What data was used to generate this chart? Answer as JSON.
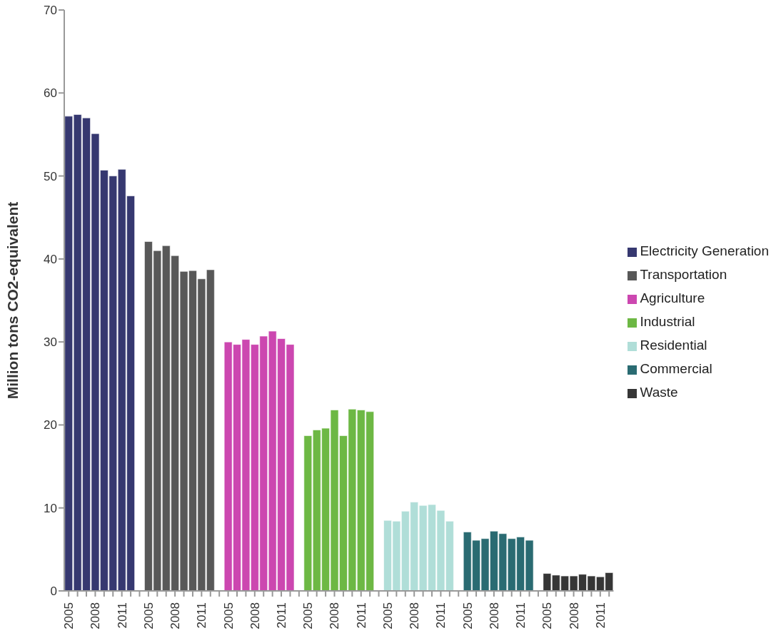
{
  "chart_data": {
    "type": "bar",
    "stacked": true,
    "ylabel": "Million tons CO2-equivalent",
    "categories": [
      "2005",
      null,
      null,
      "2008",
      null,
      null,
      "2011",
      null,
      null,
      "2005",
      null,
      null,
      "2008",
      null,
      null,
      "2011",
      null,
      null,
      "2005",
      null,
      null,
      "2008",
      null,
      null,
      "2011",
      null,
      null,
      "2005",
      null,
      null,
      "2008",
      null,
      null,
      "2011",
      null,
      null,
      "2005",
      null,
      null,
      "2008",
      null,
      null,
      "2011",
      null,
      null,
      "2005",
      null,
      null,
      "2008",
      null,
      null,
      "2011",
      null,
      null,
      "2005",
      null,
      null,
      "2008",
      null,
      null,
      "2011",
      null
    ],
    "series": [
      {
        "name": "Electricity Generation",
        "color": "#363870",
        "values": [
          57.2,
          57.4,
          57.0,
          55.1,
          50.7,
          50.0,
          50.8,
          47.6,
          null,
          null,
          null,
          null,
          null,
          null,
          null,
          null,
          null,
          null,
          null,
          null,
          null,
          null,
          null,
          null,
          null,
          null,
          null,
          null,
          null,
          null,
          null,
          null,
          null,
          null,
          null,
          null,
          null,
          null,
          null,
          null,
          null,
          null,
          null,
          null,
          null,
          null,
          null,
          null,
          null,
          null,
          null,
          null,
          null,
          null,
          null,
          null,
          null,
          null,
          null,
          null,
          null,
          null
        ]
      },
      {
        "name": "Transportation",
        "color": "#585858",
        "values": [
          null,
          null,
          null,
          null,
          null,
          null,
          null,
          null,
          null,
          42.1,
          41.0,
          41.6,
          40.4,
          38.5,
          38.6,
          37.6,
          38.7,
          null,
          null,
          null,
          null,
          null,
          null,
          null,
          null,
          null,
          null,
          null,
          null,
          null,
          null,
          null,
          null,
          null,
          null,
          null,
          null,
          null,
          null,
          null,
          null,
          null,
          null,
          null,
          null,
          null,
          null,
          null,
          null,
          null,
          null,
          null,
          null,
          null,
          null,
          null,
          null,
          null,
          null,
          null,
          null,
          null
        ]
      },
      {
        "name": "Agriculture",
        "color": "#cc47b0",
        "values": [
          null,
          null,
          null,
          null,
          null,
          null,
          null,
          null,
          null,
          null,
          null,
          null,
          null,
          null,
          null,
          null,
          null,
          null,
          30.0,
          29.7,
          30.3,
          29.7,
          30.7,
          31.3,
          30.4,
          29.7,
          null,
          null,
          null,
          null,
          null,
          null,
          null,
          null,
          null,
          null,
          null,
          null,
          null,
          null,
          null,
          null,
          null,
          null,
          null,
          null,
          null,
          null,
          null,
          null,
          null,
          null,
          null,
          null,
          null,
          null,
          null,
          null,
          null,
          null,
          null,
          null
        ]
      },
      {
        "name": "Industrial",
        "color": "#6db844",
        "values": [
          null,
          null,
          null,
          null,
          null,
          null,
          null,
          null,
          null,
          null,
          null,
          null,
          null,
          null,
          null,
          null,
          null,
          null,
          null,
          null,
          null,
          null,
          null,
          null,
          null,
          null,
          null,
          18.7,
          19.4,
          19.6,
          21.8,
          18.7,
          21.9,
          21.8,
          21.6,
          null,
          null,
          null,
          null,
          null,
          null,
          null,
          null,
          null,
          null,
          null,
          null,
          null,
          null,
          null,
          null,
          null,
          null,
          null,
          null,
          null,
          null,
          null,
          null,
          null,
          null,
          null
        ]
      },
      {
        "name": "Residential",
        "color": "#b0ded8",
        "values": [
          null,
          null,
          null,
          null,
          null,
          null,
          null,
          null,
          null,
          null,
          null,
          null,
          null,
          null,
          null,
          null,
          null,
          null,
          null,
          null,
          null,
          null,
          null,
          null,
          null,
          null,
          null,
          null,
          null,
          null,
          null,
          null,
          null,
          null,
          null,
          null,
          8.5,
          8.4,
          9.6,
          10.7,
          10.3,
          10.4,
          9.7,
          8.4,
          null,
          null,
          null,
          null,
          null,
          null,
          null,
          null,
          null,
          null,
          null,
          null,
          null,
          null,
          null,
          null,
          null,
          null
        ]
      },
      {
        "name": "Commercial",
        "color": "#2a6b72",
        "values": [
          null,
          null,
          null,
          null,
          null,
          null,
          null,
          null,
          null,
          null,
          null,
          null,
          null,
          null,
          null,
          null,
          null,
          null,
          null,
          null,
          null,
          null,
          null,
          null,
          null,
          null,
          null,
          null,
          null,
          null,
          null,
          null,
          null,
          null,
          null,
          null,
          null,
          null,
          null,
          null,
          null,
          null,
          null,
          null,
          null,
          7.1,
          6.1,
          6.3,
          7.2,
          6.9,
          6.3,
          6.5,
          6.1,
          null,
          null,
          null,
          null,
          null,
          null,
          null,
          null,
          null
        ]
      },
      {
        "name": "Waste",
        "color": "#363636",
        "values": [
          null,
          null,
          null,
          null,
          null,
          null,
          null,
          null,
          null,
          null,
          null,
          null,
          null,
          null,
          null,
          null,
          null,
          null,
          null,
          null,
          null,
          null,
          null,
          null,
          null,
          null,
          null,
          null,
          null,
          null,
          null,
          null,
          null,
          null,
          null,
          null,
          null,
          null,
          null,
          null,
          null,
          null,
          null,
          null,
          null,
          null,
          null,
          null,
          null,
          null,
          null,
          null,
          null,
          null,
          2.1,
          1.9,
          1.8,
          1.8,
          2.0,
          1.8,
          1.7,
          2.2
        ]
      }
    ],
    "ylim": [
      0,
      70
    ],
    "yticks": [
      0,
      10,
      20,
      30,
      40,
      50,
      60,
      70
    ],
    "grid": false,
    "legend": "right"
  }
}
